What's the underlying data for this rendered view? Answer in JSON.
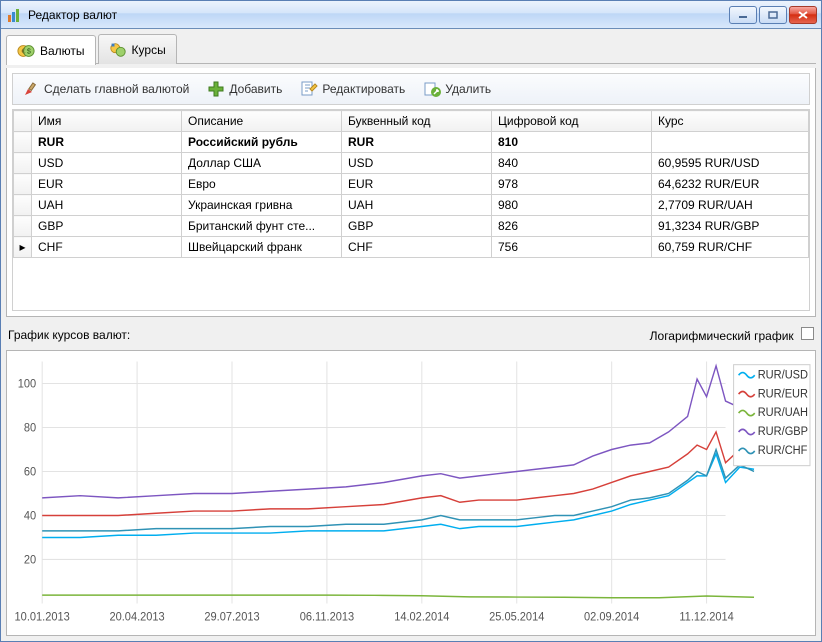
{
  "window": {
    "title": "Редактор валют"
  },
  "tabs": [
    {
      "label": "Валюты",
      "active": true
    },
    {
      "label": "Курсы",
      "active": false
    }
  ],
  "toolbar": {
    "makeMain": "Сделать главной валютой",
    "add": "Добавить",
    "edit": "Редактировать",
    "del": "Удалить"
  },
  "grid": {
    "headers": [
      "Имя",
      "Описание",
      "Буквенный код",
      "Цифровой код",
      "Курс"
    ],
    "rows": [
      {
        "name": "RUR",
        "desc": "Российский рубль",
        "alpha": "RUR",
        "num": "810",
        "rate": "",
        "main": true
      },
      {
        "name": "USD",
        "desc": "Доллар США",
        "alpha": "USD",
        "num": "840",
        "rate": "60,9595 RUR/USD"
      },
      {
        "name": "EUR",
        "desc": "Евро",
        "alpha": "EUR",
        "num": "978",
        "rate": "64,6232 RUR/EUR"
      },
      {
        "name": "UAH",
        "desc": "Украинская гривна",
        "alpha": "UAH",
        "num": "980",
        "rate": "2,7709 RUR/UAH"
      },
      {
        "name": "GBP",
        "desc": "Британский фунт сте...",
        "alpha": "GBP",
        "num": "826",
        "rate": "91,3234 RUR/GBP"
      },
      {
        "name": "CHF",
        "desc": "Швейцарский франк",
        "alpha": "CHF",
        "num": "756",
        "rate": "60,759 RUR/CHF",
        "selected": true
      }
    ]
  },
  "chart": {
    "title": "График курсов валют:",
    "logLabel": "Логарифмический график",
    "background_color": "#ffffff",
    "grid_color": "#e3e3e3",
    "axis_color": "#888888",
    "label_fontsize": 11,
    "xlim": [
      0,
      720
    ],
    "ylim": [
      0,
      110
    ],
    "yticks": [
      20,
      40,
      60,
      80,
      100
    ],
    "xticks": [
      {
        "pos": 0,
        "label": "10.01.2013"
      },
      {
        "pos": 100,
        "label": "20.04.2013"
      },
      {
        "pos": 200,
        "label": "29.07.2013"
      },
      {
        "pos": 300,
        "label": "06.11.2013"
      },
      {
        "pos": 400,
        "label": "14.02.2014"
      },
      {
        "pos": 500,
        "label": "25.05.2014"
      },
      {
        "pos": 600,
        "label": "02.09.2014"
      },
      {
        "pos": 700,
        "label": "11.12.2014"
      }
    ],
    "legend": [
      {
        "label": "RUR/USD",
        "color": "#00aeef"
      },
      {
        "label": "RUR/EUR",
        "color": "#d6403a"
      },
      {
        "label": "RUR/UAH",
        "color": "#7bb53b"
      },
      {
        "label": "RUR/GBP",
        "color": "#7d56c1"
      },
      {
        "label": "RUR/CHF",
        "color": "#2f92b5"
      }
    ],
    "series": [
      {
        "name": "GBP",
        "color": "#7d56c1",
        "points": [
          [
            0,
            48
          ],
          [
            40,
            49
          ],
          [
            80,
            48
          ],
          [
            120,
            49
          ],
          [
            160,
            50
          ],
          [
            200,
            50
          ],
          [
            240,
            51
          ],
          [
            280,
            52
          ],
          [
            320,
            53
          ],
          [
            360,
            55
          ],
          [
            400,
            58
          ],
          [
            420,
            59
          ],
          [
            440,
            57
          ],
          [
            460,
            58
          ],
          [
            480,
            59
          ],
          [
            500,
            60
          ],
          [
            520,
            61
          ],
          [
            540,
            62
          ],
          [
            560,
            63
          ],
          [
            580,
            67
          ],
          [
            600,
            70
          ],
          [
            620,
            72
          ],
          [
            640,
            73
          ],
          [
            660,
            78
          ],
          [
            680,
            85
          ],
          [
            690,
            102
          ],
          [
            700,
            94
          ],
          [
            710,
            108
          ],
          [
            720,
            92
          ],
          [
            735,
            89
          ],
          [
            750,
            94
          ]
        ]
      },
      {
        "name": "EUR",
        "color": "#d6403a",
        "points": [
          [
            0,
            40
          ],
          [
            40,
            40
          ],
          [
            80,
            40
          ],
          [
            120,
            41
          ],
          [
            160,
            42
          ],
          [
            200,
            42
          ],
          [
            240,
            43
          ],
          [
            280,
            43
          ],
          [
            320,
            44
          ],
          [
            360,
            45
          ],
          [
            400,
            48
          ],
          [
            420,
            49
          ],
          [
            440,
            46
          ],
          [
            460,
            47
          ],
          [
            480,
            47
          ],
          [
            500,
            47
          ],
          [
            520,
            48
          ],
          [
            540,
            49
          ],
          [
            560,
            50
          ],
          [
            580,
            52
          ],
          [
            600,
            55
          ],
          [
            620,
            58
          ],
          [
            640,
            60
          ],
          [
            660,
            62
          ],
          [
            680,
            68
          ],
          [
            690,
            72
          ],
          [
            700,
            70
          ],
          [
            710,
            78
          ],
          [
            720,
            64
          ],
          [
            735,
            70
          ],
          [
            750,
            65
          ]
        ]
      },
      {
        "name": "USD",
        "color": "#00aeef",
        "points": [
          [
            0,
            30
          ],
          [
            40,
            30
          ],
          [
            80,
            31
          ],
          [
            120,
            31
          ],
          [
            160,
            32
          ],
          [
            200,
            32
          ],
          [
            240,
            32
          ],
          [
            280,
            33
          ],
          [
            320,
            33
          ],
          [
            360,
            33
          ],
          [
            400,
            35
          ],
          [
            420,
            36
          ],
          [
            440,
            34
          ],
          [
            460,
            35
          ],
          [
            480,
            35
          ],
          [
            500,
            35
          ],
          [
            520,
            36
          ],
          [
            540,
            37
          ],
          [
            560,
            38
          ],
          [
            580,
            40
          ],
          [
            600,
            42
          ],
          [
            620,
            45
          ],
          [
            640,
            47
          ],
          [
            660,
            49
          ],
          [
            680,
            55
          ],
          [
            690,
            58
          ],
          [
            700,
            58
          ],
          [
            710,
            68
          ],
          [
            720,
            55
          ],
          [
            735,
            62
          ],
          [
            750,
            61
          ]
        ]
      },
      {
        "name": "CHF",
        "color": "#2f92b5",
        "points": [
          [
            0,
            33
          ],
          [
            40,
            33
          ],
          [
            80,
            33
          ],
          [
            120,
            34
          ],
          [
            160,
            34
          ],
          [
            200,
            34
          ],
          [
            240,
            35
          ],
          [
            280,
            35
          ],
          [
            320,
            36
          ],
          [
            360,
            36
          ],
          [
            400,
            38
          ],
          [
            420,
            40
          ],
          [
            440,
            38
          ],
          [
            460,
            38
          ],
          [
            480,
            38
          ],
          [
            500,
            38
          ],
          [
            520,
            39
          ],
          [
            540,
            40
          ],
          [
            560,
            40
          ],
          [
            580,
            42
          ],
          [
            600,
            44
          ],
          [
            620,
            47
          ],
          [
            640,
            48
          ],
          [
            660,
            50
          ],
          [
            680,
            56
          ],
          [
            690,
            60
          ],
          [
            700,
            58
          ],
          [
            710,
            70
          ],
          [
            720,
            57
          ],
          [
            735,
            63
          ],
          [
            750,
            60
          ]
        ]
      },
      {
        "name": "UAH",
        "color": "#7bb53b",
        "points": [
          [
            0,
            3.8
          ],
          [
            50,
            3.8
          ],
          [
            100,
            3.8
          ],
          [
            150,
            3.8
          ],
          [
            200,
            3.8
          ],
          [
            250,
            3.8
          ],
          [
            300,
            3.8
          ],
          [
            350,
            3.7
          ],
          [
            400,
            3.5
          ],
          [
            450,
            3.0
          ],
          [
            500,
            2.9
          ],
          [
            550,
            2.8
          ],
          [
            600,
            2.6
          ],
          [
            650,
            2.6
          ],
          [
            700,
            3.4
          ],
          [
            750,
            2.8
          ]
        ]
      }
    ]
  }
}
